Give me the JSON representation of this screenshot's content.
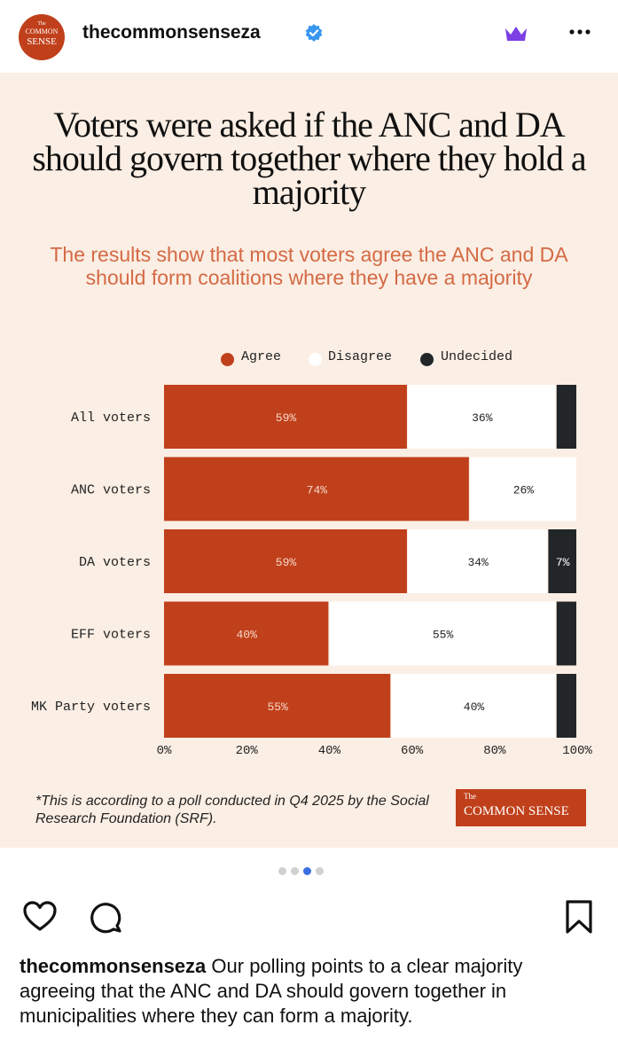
{
  "account": {
    "username": "thecommonsenseza",
    "avatar_lines": [
      "The",
      "COMMON",
      "SENSE"
    ],
    "verified_icon": "verified-badge-icon",
    "crown_icon": "crown-icon",
    "more_icon": "more-options-icon"
  },
  "post": {
    "title": "Voters were asked if  the ANC and DA should govern together where they hold a majority",
    "subtitle": "The results show that most voters agree the ANC and DA should form coalitions where they have a majority",
    "footnote": "*This is according to a poll conducted in Q4 2025 by the Social Research Foundation (SRF).",
    "brand_small": "The",
    "brand_big": "COMMON SENSE"
  },
  "legend": [
    {
      "label": "Agree",
      "color": "#c0401b"
    },
    {
      "label": "Disagree",
      "color": "#ffffff"
    },
    {
      "label": "Undecided",
      "color": "#222629"
    }
  ],
  "chart_data": {
    "type": "bar",
    "orientation": "horizontal",
    "stacked": true,
    "categories": [
      "All voters",
      "ANC voters",
      "DA voters",
      "EFF voters",
      "MK Party voters"
    ],
    "series": [
      {
        "name": "Agree",
        "color": "#c0401b",
        "values": [
          59,
          74,
          59,
          40,
          55
        ],
        "labels": [
          "59%",
          "74%",
          "59%",
          "40%",
          "55%"
        ]
      },
      {
        "name": "Disagree",
        "color": "#ffffff",
        "values": [
          36,
          26,
          34,
          55,
          40
        ],
        "labels": [
          "36%",
          "26%",
          "34%",
          "55%",
          "40%"
        ]
      },
      {
        "name": "Undecided",
        "color": "#222629",
        "values": [
          5,
          0,
          7,
          5,
          5
        ],
        "labels": [
          "",
          "",
          "7%",
          "",
          ""
        ]
      }
    ],
    "xlim": [
      0,
      100
    ],
    "xticks": [
      "0%",
      "20%",
      "40%",
      "60%",
      "80%",
      "100%"
    ],
    "grid": false,
    "legend_position": "top"
  },
  "carousel": {
    "count": 4,
    "active": 2
  },
  "actions": {
    "like_icon": "heart-icon",
    "comment_icon": "comment-icon",
    "save_icon": "bookmark-icon"
  },
  "caption": {
    "username": "thecommonsenseza",
    "text": " Our polling points to a clear majority agreeing that the ANC and DA should govern together in municipalities where they can form a majority."
  }
}
